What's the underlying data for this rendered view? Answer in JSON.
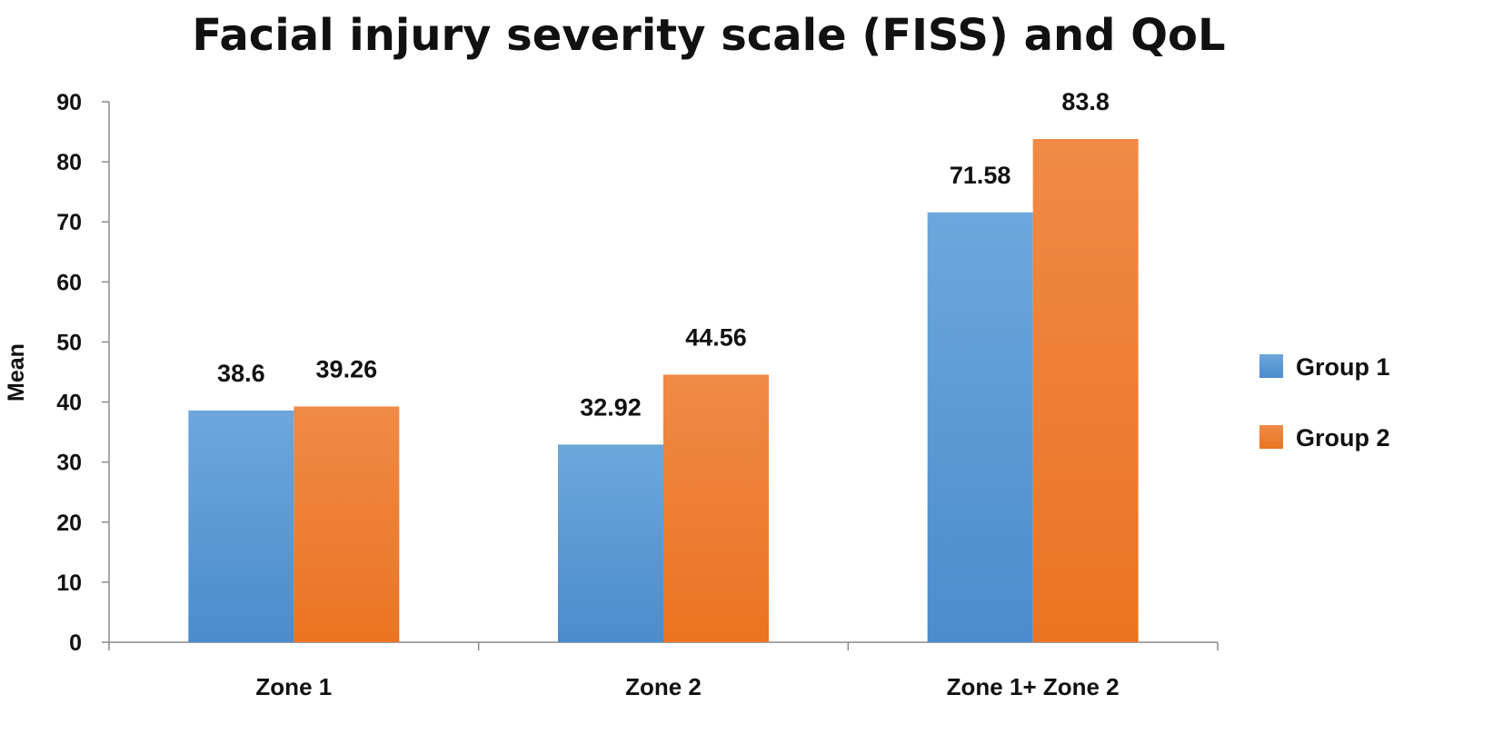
{
  "chart_data": {
    "type": "bar",
    "title": "Facial injury severity scale (FISS) and QoL",
    "xlabel": "",
    "ylabel": "Mean",
    "categories": [
      "Zone 1",
      "Zone 2",
      "Zone 1+ Zone 2"
    ],
    "series": [
      {
        "name": "Group 1",
        "values": [
          38.6,
          32.92,
          71.58
        ],
        "labels": [
          "38.6",
          "32.92",
          "71.58"
        ],
        "color": "#5b9bd5"
      },
      {
        "name": "Group 2",
        "values": [
          39.26,
          44.56,
          83.8
        ],
        "labels": [
          "39.26",
          "44.56",
          "83.8"
        ],
        "color": "#ed7d31"
      }
    ],
    "ylim": [
      0,
      90
    ],
    "yticks": [
      "0",
      "10",
      "20",
      "30",
      "40",
      "50",
      "60",
      "70",
      "80",
      "90"
    ],
    "grid": false,
    "legend_position": "right"
  }
}
